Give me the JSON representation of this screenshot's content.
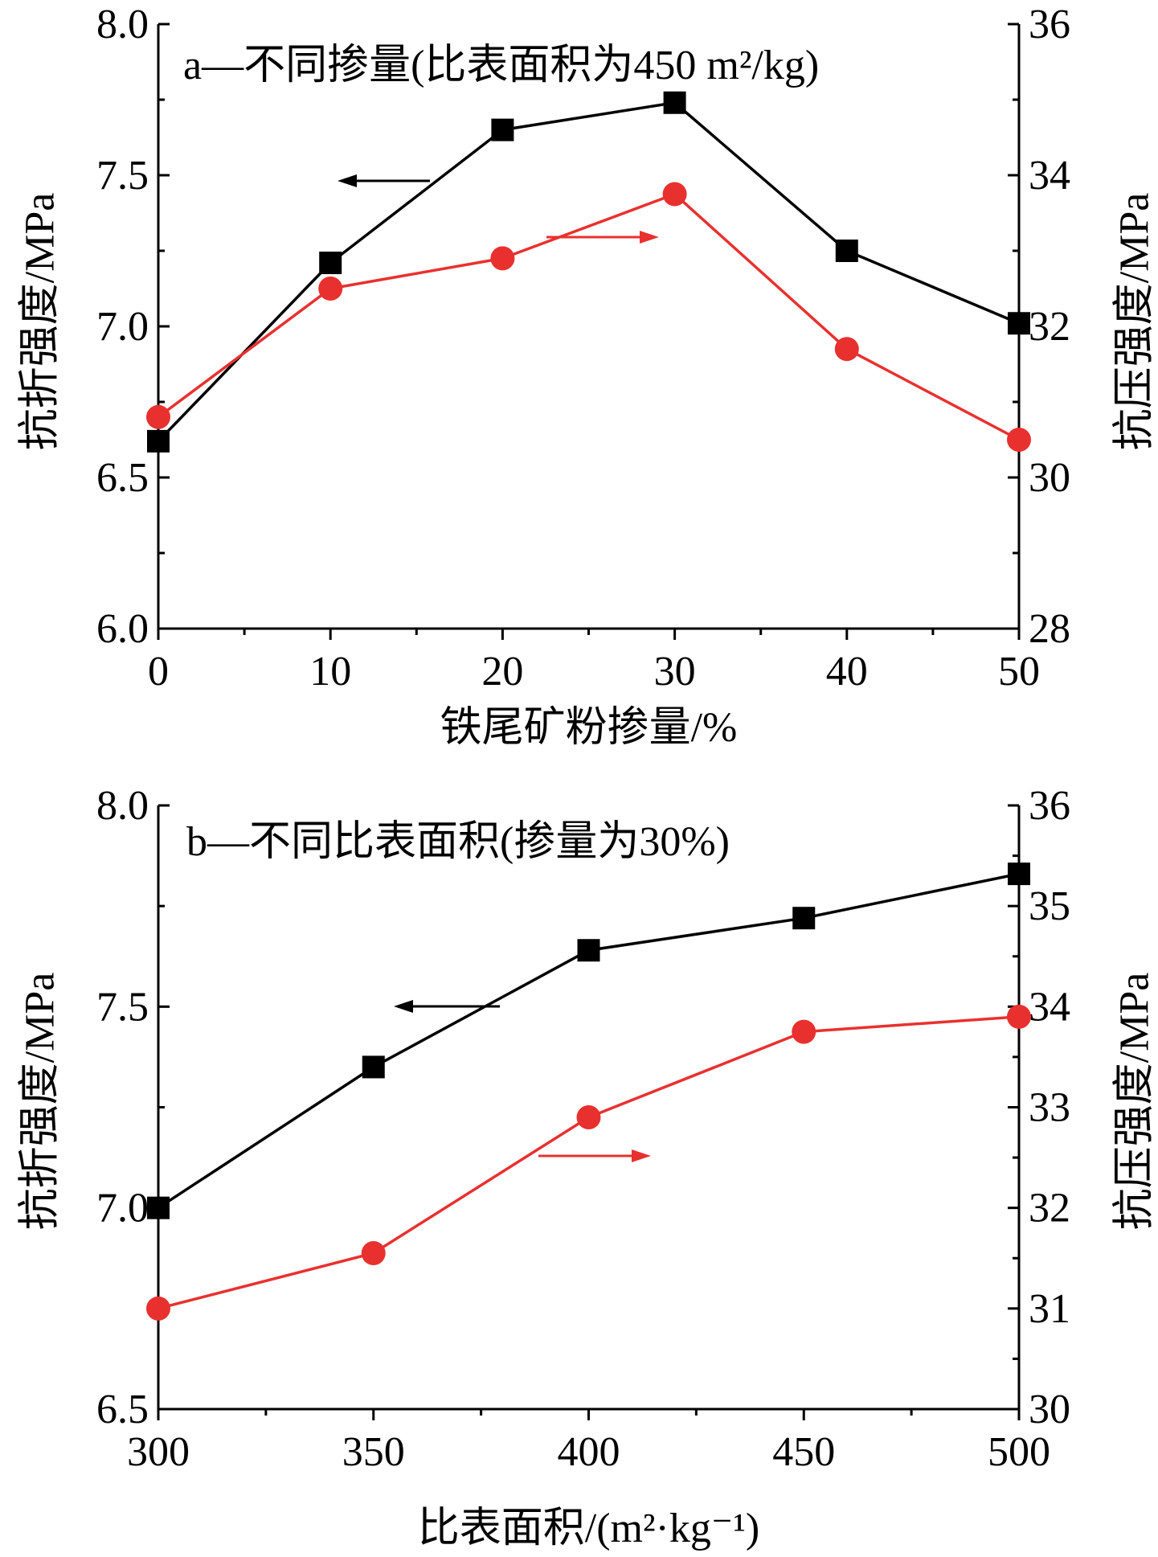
{
  "chart_data": [
    {
      "type": "line",
      "title": "a—不同掺量(比表面积为450 m²/kg)",
      "xlabel": "铁尾矿粉掺量/%",
      "ylabel_left": "抗折强度/MPa",
      "ylabel_right": "抗压强度/MPa",
      "x": [
        0,
        10,
        20,
        30,
        40,
        50
      ],
      "xlim": [
        0,
        50
      ],
      "xticks": [
        "0",
        "10",
        "20",
        "30",
        "40",
        "50"
      ],
      "ylim_left": [
        6.0,
        8.0
      ],
      "yticks_left": [
        "6.0",
        "6.5",
        "7.0",
        "7.5",
        "8.0"
      ],
      "ylim_right": [
        28,
        36
      ],
      "yticks_right": [
        "28",
        "30",
        "32",
        "34",
        "36"
      ],
      "grid": false,
      "series": [
        {
          "axis": "left",
          "color": "#000000",
          "marker": "square",
          "values": [
            6.62,
            7.21,
            7.65,
            7.74,
            7.25,
            7.01
          ]
        },
        {
          "axis": "right",
          "color": "#e8312f",
          "marker": "circle",
          "values": [
            30.8,
            32.5,
            32.9,
            33.75,
            31.7,
            30.5
          ]
        }
      ]
    },
    {
      "type": "line",
      "title": "b—不同比表面积(掺量为30%)",
      "xlabel": "比表面积/(m²·kg⁻¹)",
      "ylabel_left": "抗折强度/MPa",
      "ylabel_right": "抗压强度/MPa",
      "x": [
        300,
        350,
        400,
        450,
        500
      ],
      "xlim": [
        300,
        500
      ],
      "xticks": [
        "300",
        "350",
        "400",
        "450",
        "500"
      ],
      "ylim_left": [
        6.5,
        8.0
      ],
      "yticks_left": [
        "6.5",
        "7.0",
        "7.5",
        "8.0"
      ],
      "ylim_right": [
        30,
        36
      ],
      "yticks_right": [
        "30",
        "31",
        "32",
        "33",
        "34",
        "35",
        "36"
      ],
      "grid": false,
      "series": [
        {
          "axis": "left",
          "color": "#000000",
          "marker": "square",
          "values": [
            7.0,
            7.35,
            7.64,
            7.72,
            7.83
          ]
        },
        {
          "axis": "right",
          "color": "#e8312f",
          "marker": "circle",
          "values": [
            31.0,
            31.55,
            32.9,
            33.75,
            33.9
          ]
        }
      ]
    }
  ]
}
